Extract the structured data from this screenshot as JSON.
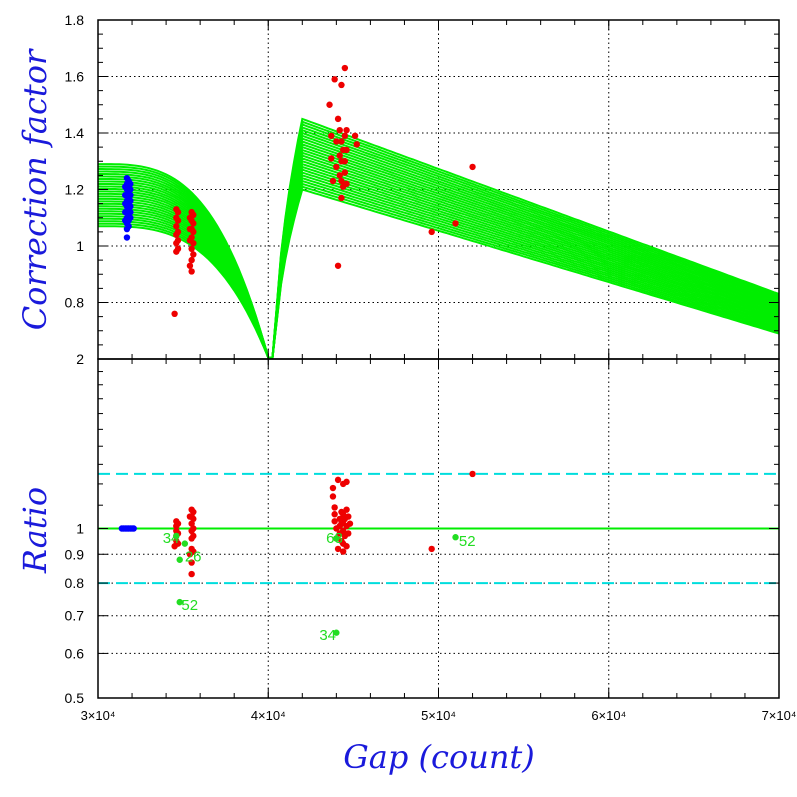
{
  "chart_data": [
    {
      "type": "line",
      "panel": "top",
      "ylabel": "Correction factor",
      "xlim": [
        30000,
        70000
      ],
      "ylim": [
        0.6,
        1.8
      ],
      "y_ticks": [
        "0.8",
        "1",
        "1.2",
        "1.4",
        "1.6",
        "1.8"
      ],
      "grid": true,
      "curve_family": {
        "color": "#00ee00",
        "dip_x": 40000,
        "rise_end_x": 42000,
        "left_start_range": [
          1.07,
          1.29
        ],
        "peak_range": [
          1.2,
          1.45
        ],
        "end_range": [
          0.69,
          0.83
        ],
        "num_curves": 26
      },
      "series": [
        {
          "color": "#0000ff",
          "points": [
            [
              31700,
              1.24
            ],
            [
              31700,
              1.22
            ],
            [
              31700,
              1.2
            ],
            [
              31700,
              1.18
            ],
            [
              31700,
              1.16
            ],
            [
              31700,
              1.14
            ],
            [
              31700,
              1.12
            ],
            [
              31700,
              1.1
            ],
            [
              31700,
              1.08
            ],
            [
              31700,
              1.06
            ],
            [
              31700,
              1.03
            ],
            [
              31800,
              1.23
            ],
            [
              31800,
              1.21
            ],
            [
              31800,
              1.19
            ],
            [
              31800,
              1.17
            ],
            [
              31800,
              1.15
            ],
            [
              31800,
              1.13
            ],
            [
              31800,
              1.11
            ],
            [
              31800,
              1.09
            ],
            [
              31800,
              1.07
            ],
            [
              31900,
              1.22
            ],
            [
              31900,
              1.2
            ],
            [
              31900,
              1.18
            ],
            [
              31900,
              1.16
            ],
            [
              31900,
              1.14
            ],
            [
              31900,
              1.12
            ],
            [
              31900,
              1.1
            ],
            [
              31600,
              1.21
            ],
            [
              31600,
              1.18
            ],
            [
              31600,
              1.15
            ],
            [
              31600,
              1.12
            ],
            [
              31600,
              1.09
            ]
          ]
        },
        {
          "color": "#ee0000",
          "points": [
            [
              34600,
              1.13
            ],
            [
              34600,
              1.1
            ],
            [
              34600,
              1.07
            ],
            [
              34600,
              1.04
            ],
            [
              34600,
              1.01
            ],
            [
              34600,
              0.98
            ],
            [
              34500,
              0.76
            ],
            [
              34700,
              1.12
            ],
            [
              34700,
              1.09
            ],
            [
              34700,
              1.05
            ],
            [
              34700,
              1.02
            ],
            [
              34700,
              0.99
            ],
            [
              35500,
              1.12
            ],
            [
              35500,
              1.09
            ],
            [
              35500,
              1.06
            ],
            [
              35500,
              1.03
            ],
            [
              35500,
              0.99
            ],
            [
              35500,
              0.95
            ],
            [
              35500,
              0.91
            ],
            [
              35600,
              1.11
            ],
            [
              35600,
              1.08
            ],
            [
              35600,
              1.05
            ],
            [
              35600,
              1.01
            ],
            [
              35600,
              0.97
            ],
            [
              35400,
              1.1
            ],
            [
              35400,
              1.06
            ],
            [
              35400,
              1.02
            ],
            [
              35400,
              0.93
            ],
            [
              43600,
              1.5
            ],
            [
              43700,
              1.39
            ],
            [
              43700,
              1.31
            ],
            [
              43800,
              1.23
            ],
            [
              43900,
              1.59
            ],
            [
              44000,
              1.37
            ],
            [
              44000,
              1.28
            ],
            [
              44100,
              1.45
            ],
            [
              44100,
              0.93
            ],
            [
              44200,
              1.41
            ],
            [
              44200,
              1.32
            ],
            [
              44200,
              1.25
            ],
            [
              44300,
              1.57
            ],
            [
              44300,
              1.37
            ],
            [
              44300,
              1.3
            ],
            [
              44300,
              1.23
            ],
            [
              44300,
              1.17
            ],
            [
              44400,
              1.34
            ],
            [
              44500,
              1.63
            ],
            [
              44500,
              1.39
            ],
            [
              44500,
              1.3
            ],
            [
              44500,
              1.26
            ],
            [
              44600,
              1.41
            ],
            [
              44600,
              1.34
            ],
            [
              44600,
              1.22
            ],
            [
              44400,
              1.21
            ],
            [
              45100,
              1.39
            ],
            [
              45200,
              1.36
            ],
            [
              49600,
              1.05
            ],
            [
              51000,
              1.08
            ],
            [
              52000,
              1.28
            ]
          ]
        }
      ]
    },
    {
      "type": "scatter",
      "panel": "bottom",
      "ylabel": "Ratio",
      "xlabel": "Gap (count)",
      "xlim": [
        30000,
        70000
      ],
      "ylim": [
        0.5,
        2
      ],
      "scale": "log",
      "y_ticks": [
        "0.5",
        "0.6",
        "0.7",
        "0.8",
        "0.9",
        "1",
        "2"
      ],
      "x_ticks": [
        "3×10⁴",
        "4×10⁴",
        "5×10⁴",
        "6×10⁴",
        "7×10⁴"
      ],
      "grid": true,
      "reference_lines": [
        {
          "y": 1.0,
          "style": "solid",
          "color": "#00ee00"
        },
        {
          "y": 1.25,
          "style": "dashed",
          "color": "#00dddd"
        },
        {
          "y": 0.8,
          "style": "dashed",
          "color": "#00dddd"
        }
      ],
      "series": [
        {
          "color": "#0000ff",
          "points": [
            [
              31400,
              1.0
            ],
            [
              31500,
              1.0
            ],
            [
              31600,
              1.0
            ],
            [
              31700,
              1.0
            ],
            [
              31800,
              1.0
            ],
            [
              31900,
              1.0
            ],
            [
              32000,
              1.0
            ],
            [
              32100,
              1.0
            ]
          ]
        },
        {
          "color": "#ee0000",
          "points": [
            [
              34600,
              1.03
            ],
            [
              34600,
              1.01
            ],
            [
              34600,
              0.99
            ],
            [
              34600,
              0.97
            ],
            [
              34600,
              0.95
            ],
            [
              34700,
              1.02
            ],
            [
              34700,
              0.98
            ],
            [
              34700,
              0.94
            ],
            [
              34500,
              0.93
            ],
            [
              35500,
              1.08
            ],
            [
              35500,
              1.05
            ],
            [
              35500,
              1.02
            ],
            [
              35500,
              0.99
            ],
            [
              35500,
              0.96
            ],
            [
              35500,
              0.92
            ],
            [
              35400,
              0.9
            ],
            [
              35500,
              0.87
            ],
            [
              35500,
              0.83
            ],
            [
              35600,
              1.07
            ],
            [
              35600,
              1.04
            ],
            [
              35600,
              1.0
            ],
            [
              35600,
              0.97
            ],
            [
              35600,
              0.91
            ],
            [
              35400,
              1.05
            ],
            [
              43800,
              1.18
            ],
            [
              43800,
              1.14
            ],
            [
              43900,
              1.09
            ],
            [
              43900,
              1.06
            ],
            [
              43900,
              1.03
            ],
            [
              44000,
              1.0
            ],
            [
              44000,
              0.96
            ],
            [
              44100,
              0.92
            ],
            [
              44100,
              1.22
            ],
            [
              44200,
              1.04
            ],
            [
              44200,
              1.01
            ],
            [
              44200,
              0.98
            ],
            [
              44300,
              1.07
            ],
            [
              44300,
              1.02
            ],
            [
              44300,
              0.95
            ],
            [
              44400,
              1.2
            ],
            [
              44400,
              1.06
            ],
            [
              44400,
              1.03
            ],
            [
              44400,
              0.99
            ],
            [
              44400,
              0.94
            ],
            [
              44400,
              0.91
            ],
            [
              44500,
              1.04
            ],
            [
              44500,
              0.97
            ],
            [
              44600,
              1.21
            ],
            [
              44600,
              1.08
            ],
            [
              44600,
              1.01
            ],
            [
              44600,
              0.93
            ],
            [
              44700,
              1.05
            ],
            [
              44700,
              0.98
            ],
            [
              44800,
              1.02
            ],
            [
              49600,
              0.92
            ],
            [
              52000,
              1.25
            ]
          ]
        },
        {
          "color": "#22dd22",
          "points": [
            [
              34600,
              0.97
            ],
            [
              35100,
              0.94
            ],
            [
              34800,
              0.88
            ],
            [
              34800,
              0.74
            ],
            [
              44000,
              0.96
            ],
            [
              44000,
              0.653
            ],
            [
              51000,
              0.965
            ]
          ]
        }
      ],
      "annotations": [
        {
          "text": "34",
          "x": 33800,
          "y": 0.965
        },
        {
          "text": "26",
          "x": 35100,
          "y": 0.895
        },
        {
          "text": "52",
          "x": 34900,
          "y": 0.735
        },
        {
          "text": "68",
          "x": 43400,
          "y": 0.965
        },
        {
          "text": "34",
          "x": 43000,
          "y": 0.65
        },
        {
          "text": "52",
          "x": 51200,
          "y": 0.955
        }
      ]
    }
  ]
}
